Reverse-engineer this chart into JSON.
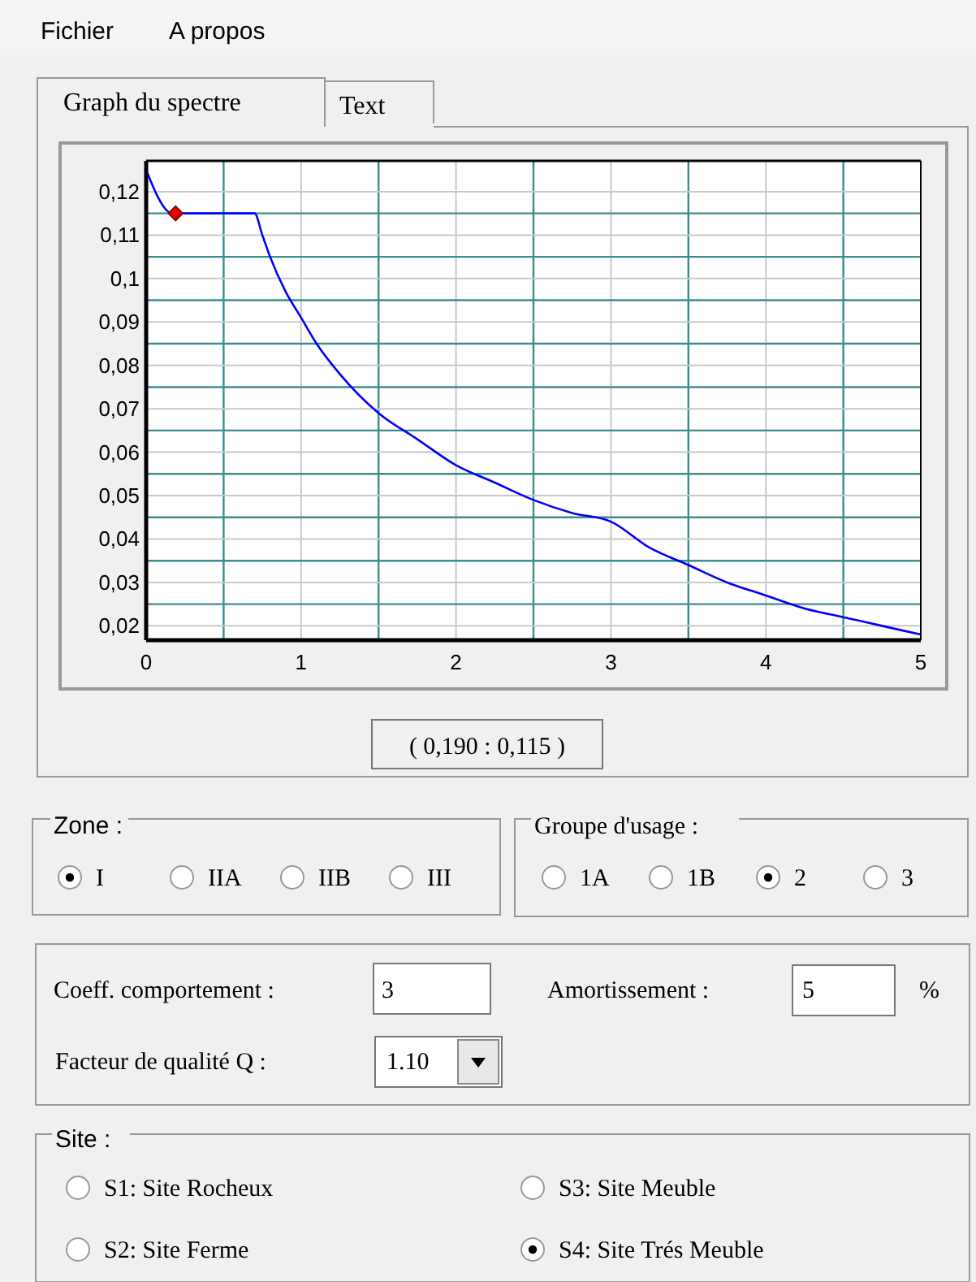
{
  "chart_data": [
    {
      "type": "line",
      "x": [
        0,
        0.17,
        0.7,
        0.75,
        0.8,
        0.9,
        1,
        1.1,
        1.25,
        1.5,
        1.75,
        2,
        2.25,
        2.5,
        2.75,
        3,
        3.25,
        3.5,
        3.75,
        4,
        4.25,
        4.5,
        4.75,
        5
      ],
      "series": [
        {
          "color": "#0000ff",
          "values": [
            0.125,
            0.115,
            0.115,
            0.11,
            0.105,
            0.097,
            0.091,
            0.085,
            0.078,
            0.069,
            0.063,
            0.057,
            0.053,
            0.049,
            0.046,
            0.044,
            0.038,
            0.034,
            0.03,
            0.027,
            0.024,
            0.022,
            0.02,
            0.018
          ]
        },
        {
          "type": "scatter",
          "x": [
            0.19
          ],
          "color": "#e00000",
          "marker": "diamond",
          "values": [
            0.115
          ]
        }
      ],
      "xlim": [
        0,
        5
      ],
      "xticks": [
        0,
        {
          "value": 0.5,
          "label": null
        },
        1,
        {
          "value": 1.5,
          "label": null
        },
        2,
        {
          "value": 2.5,
          "label": null
        },
        3,
        {
          "value": 3.5,
          "label": null
        },
        4,
        {
          "value": 4.5,
          "label": null
        },
        5
      ],
      "ylim": [
        0.0167,
        0.1271
      ],
      "yticks": [
        {
          "value": 0.02,
          "label": "0,02"
        },
        {
          "value": 0.025,
          "label": null
        },
        {
          "value": 0.03,
          "label": "0,03"
        },
        {
          "value": 0.035,
          "label": null
        },
        {
          "value": 0.04,
          "label": "0,04"
        },
        {
          "value": 0.045,
          "label": null
        },
        {
          "value": 0.05,
          "label": "0,05"
        },
        {
          "value": 0.055,
          "label": null
        },
        {
          "value": 0.06,
          "label": "0,06"
        },
        {
          "value": 0.065,
          "label": null
        },
        {
          "value": 0.07,
          "label": "0,07"
        },
        {
          "value": 0.075,
          "label": null
        },
        {
          "value": 0.08,
          "label": "0,08"
        },
        {
          "value": 0.085,
          "label": null
        },
        {
          "value": 0.09,
          "label": "0,09"
        },
        {
          "value": 0.095,
          "label": null
        },
        {
          "value": 0.1,
          "label": "0,1"
        },
        {
          "value": 0.105,
          "label": null
        },
        {
          "value": 0.11,
          "label": "0,11"
        },
        {
          "value": 0.115,
          "label": null
        },
        {
          "value": 0.12,
          "label": "0,12"
        }
      ],
      "grid": true,
      "marker": "none",
      "line_style": "solid",
      "annotations": [
        "( 0,190 : 0,115 )"
      ]
    },
    {
      "type": "other",
      "annotations": [
        "Fichier",
        "A propos",
        "Graph du spectre",
        "Text",
        "Zone :",
        "I",
        "IIA",
        "IIB",
        "III",
        "Groupe d'usage :",
        "1A",
        "1B",
        "2",
        "3",
        "Coeff. comportement :",
        "3",
        "Amortissement :",
        "5",
        "%",
        "Facteur de qualité Q :",
        "1.10",
        "Site :",
        "S1: Site Rocheux",
        "S3: Site Meuble",
        "S2: Site Ferme",
        "S4: Site Trés Meuble"
      ]
    }
  ]
}
